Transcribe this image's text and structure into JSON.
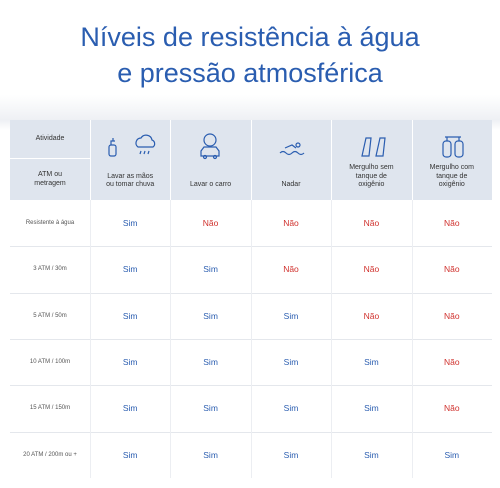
{
  "header": {
    "title_lines": [
      "Níveis de resistência à água",
      "e pressão atmosférica"
    ]
  },
  "table": {
    "corner_top": "Atividade",
    "corner_bottom": "ATM ou metragem",
    "columns": [
      "Lavar as mãos ou tomar chuva",
      "Lavar o carro",
      "Nadar",
      "Mergulho sem tanque de oxigênio",
      "Mergulho com tanque de oxigênio"
    ],
    "rows": [
      {
        "label": "Resistente à água",
        "cells": [
          {
            "text": "Sim",
            "color": "#2a5db0"
          },
          {
            "text": "Não",
            "color": "#d0312d"
          },
          {
            "text": "Não",
            "color": "#d0312d"
          },
          {
            "text": "Não",
            "color": "#d0312d"
          },
          {
            "text": "Não",
            "color": "#d0312d"
          }
        ]
      },
      {
        "label": "3 ATM / 30m",
        "cells": [
          {
            "text": "Sim",
            "color": "#2a5db0"
          },
          {
            "text": "Sim",
            "color": "#2a5db0"
          },
          {
            "text": "Não",
            "color": "#d0312d"
          },
          {
            "text": "Não",
            "color": "#d0312d"
          },
          {
            "text": "Não",
            "color": "#d0312d"
          }
        ]
      },
      {
        "label": "5 ATM / 50m",
        "cells": [
          {
            "text": "Sim",
            "color": "#2a5db0"
          },
          {
            "text": "Sim",
            "color": "#2a5db0"
          },
          {
            "text": "Sim",
            "color": "#2a5db0"
          },
          {
            "text": "Não",
            "color": "#d0312d"
          },
          {
            "text": "Não",
            "color": "#d0312d"
          }
        ]
      },
      {
        "label": "10 ATM / 100m",
        "cells": [
          {
            "text": "Sim",
            "color": "#2a5db0"
          },
          {
            "text": "Sim",
            "color": "#2a5db0"
          },
          {
            "text": "Sim",
            "color": "#2a5db0"
          },
          {
            "text": "Sim",
            "color": "#2a5db0"
          },
          {
            "text": "Não",
            "color": "#d0312d"
          }
        ]
      },
      {
        "label": "15 ATM / 150m",
        "cells": [
          {
            "text": "Sim",
            "color": "#2a5db0"
          },
          {
            "text": "Sim",
            "color": "#2a5db0"
          },
          {
            "text": "Sim",
            "color": "#2a5db0"
          },
          {
            "text": "Sim",
            "color": "#2a5db0"
          },
          {
            "text": "Não",
            "color": "#d0312d"
          }
        ]
      },
      {
        "label": "20 ATM / 200m ou +",
        "cells": [
          {
            "text": "Sim",
            "color": "#2a5db0"
          },
          {
            "text": "Sim",
            "color": "#2a5db0"
          },
          {
            "text": "Sim",
            "color": "#2a5db0"
          },
          {
            "text": "Sim",
            "color": "#2a5db0"
          },
          {
            "text": "Sim",
            "color": "#2a5db0"
          }
        ]
      }
    ]
  }
}
